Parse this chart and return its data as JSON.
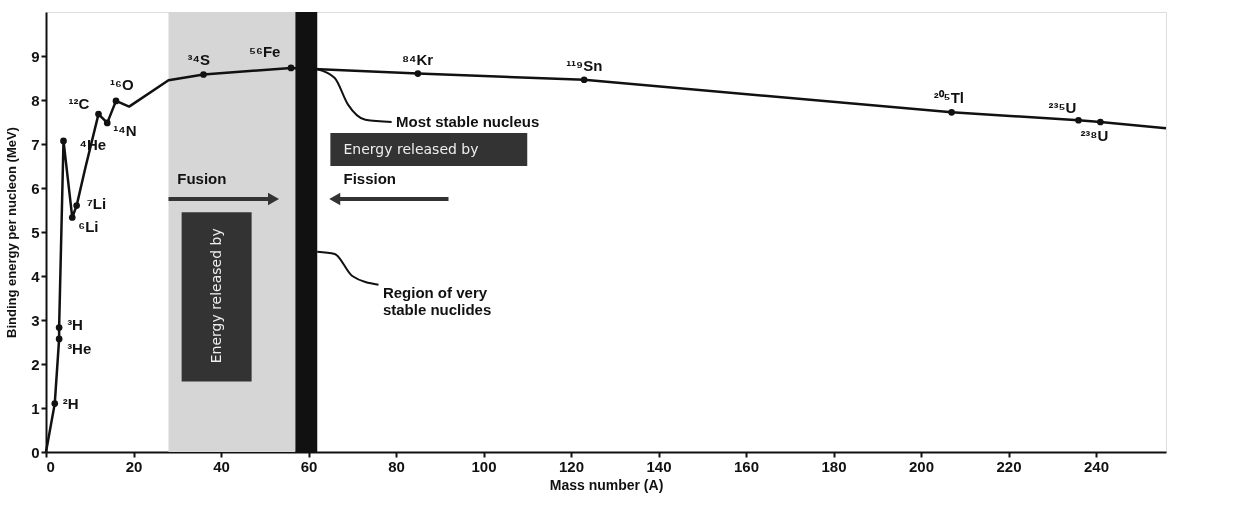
{
  "chart_data": {
    "type": "line",
    "xlabel": "Mass number (A)",
    "ylabel": "Binding energy per nucleon (MeV)",
    "xlim": [
      0,
      256
    ],
    "ylim": [
      0,
      10
    ],
    "xticks": [
      0,
      20,
      40,
      60,
      80,
      100,
      120,
      140,
      160,
      180,
      200,
      220,
      240
    ],
    "yticks": [
      0,
      1,
      2,
      3,
      4,
      5,
      6,
      7,
      8,
      9
    ],
    "grid": false,
    "series": [
      {
        "color": "#111111",
        "marker": "none",
        "x": [
          0,
          2,
          3,
          3,
          4,
          6,
          7,
          9,
          12,
          14,
          16,
          19,
          28,
          36,
          56,
          85,
          123,
          207,
          236,
          241,
          256
        ],
        "values": [
          0,
          1.1,
          2.57,
          2.83,
          7.07,
          5.33,
          5.6,
          6.46,
          7.68,
          7.48,
          7.98,
          7.85,
          8.45,
          8.58,
          8.73,
          8.6,
          8.46,
          7.72,
          7.54,
          7.5,
          7.36
        ]
      },
      {
        "type": "scatter",
        "color": "#111111",
        "marker": "circle",
        "x": [
          2,
          3,
          3,
          4,
          6,
          7,
          12,
          14,
          16,
          36,
          56,
          85,
          123,
          207,
          236,
          241
        ],
        "values": [
          1.1,
          2.57,
          2.83,
          7.07,
          5.33,
          5.6,
          7.68,
          7.48,
          7.98,
          8.58,
          8.73,
          8.6,
          8.46,
          7.72,
          7.54,
          7.5
        ]
      }
    ],
    "bands": [
      {
        "axis": "x",
        "from": 28,
        "to": 57,
        "color": "#d6d6d6"
      },
      {
        "axis": "x",
        "from": 57,
        "to": 62,
        "color": "#111111",
        "label": "Region of very\nstable nuclides"
      }
    ],
    "annotations": [
      {
        "text": "²H",
        "x": 2,
        "y": 1.1
      },
      {
        "text": "³He",
        "x": 3,
        "y": 2.57
      },
      {
        "text": "³H",
        "x": 3,
        "y": 2.83
      },
      {
        "text": "⁴He",
        "x": 4,
        "y": 7.07
      },
      {
        "text": "⁶Li",
        "x": 6,
        "y": 5.33
      },
      {
        "text": "⁷Li",
        "x": 7,
        "y": 5.6
      },
      {
        "text": "¹²C",
        "x": 12,
        "y": 7.68
      },
      {
        "text": "¹⁴N",
        "x": 14,
        "y": 7.48
      },
      {
        "text": "¹⁶O",
        "x": 16,
        "y": 7.98
      },
      {
        "text": "³⁴S",
        "x": 36,
        "y": 8.58
      },
      {
        "text": "⁵⁶Fe",
        "x": 56,
        "y": 8.73
      },
      {
        "text": "⁸⁴Kr",
        "x": 85,
        "y": 8.6
      },
      {
        "text": "¹¹⁹Sn",
        "x": 123,
        "y": 8.46
      },
      {
        "text": "²⁰⁵Tl",
        "x": 207,
        "y": 7.72
      },
      {
        "text": "²³⁵U",
        "x": 236,
        "y": 7.54
      },
      {
        "text": "²³⁸U",
        "x": 241,
        "y": 7.5
      },
      {
        "text": "Most stable nucleus",
        "x": 62,
        "y": 8.7
      },
      "Energy released by",
      "Fission",
      "Fusion",
      "Energy released by"
    ]
  }
}
